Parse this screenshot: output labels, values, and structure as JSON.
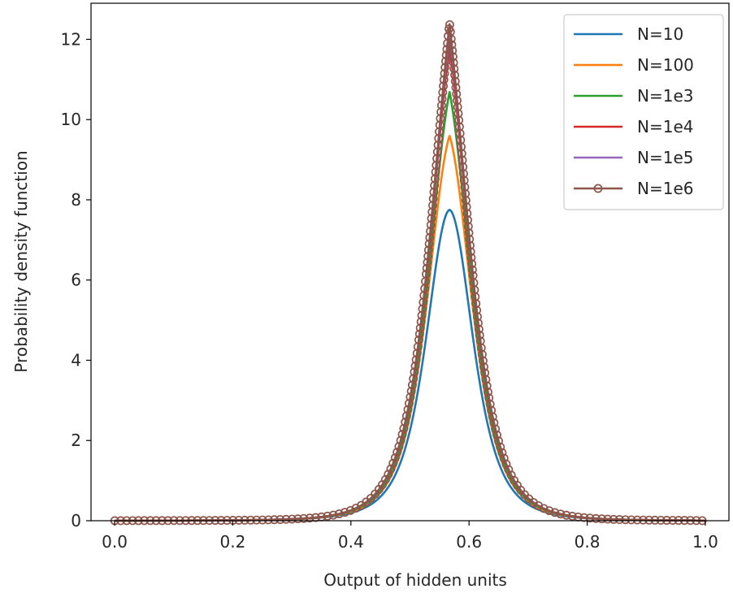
{
  "chart_data": {
    "type": "line",
    "title": "",
    "xlabel": "Output of hidden units",
    "ylabel": "Probability density function",
    "xlim": [
      -0.04,
      1.04
    ],
    "ylim": [
      0,
      12.9
    ],
    "xticks": [
      0.0,
      0.2,
      0.4,
      0.6,
      0.8,
      1.0
    ],
    "xtick_labels": [
      "0.0",
      "0.2",
      "0.4",
      "0.6",
      "0.8",
      "1.0"
    ],
    "yticks": [
      0,
      2,
      4,
      6,
      8,
      10,
      12
    ],
    "ytick_labels": [
      "0",
      "2",
      "4",
      "6",
      "8",
      "10",
      "12"
    ],
    "grid": false,
    "legend_position": "top-right",
    "distribution": {
      "center": 0.567,
      "support": [
        0.0,
        1.0
      ]
    },
    "series": [
      {
        "name": "N=10",
        "color": "#1f77b4",
        "peak": 7.75,
        "marker": "none"
      },
      {
        "name": "N=100",
        "color": "#ff7f0e",
        "peak": 9.6,
        "marker": "none"
      },
      {
        "name": "N=1e3",
        "color": "#2ca02c",
        "peak": 10.7,
        "marker": "none"
      },
      {
        "name": "N=1e4",
        "color": "#d62728",
        "peak": 11.9,
        "marker": "none"
      },
      {
        "name": "N=1e5",
        "color": "#9467bd",
        "peak": 12.2,
        "marker": "none"
      },
      {
        "name": "N=1e6",
        "color": "#8c564b",
        "peak": 12.4,
        "marker": "open-circle"
      }
    ]
  }
}
